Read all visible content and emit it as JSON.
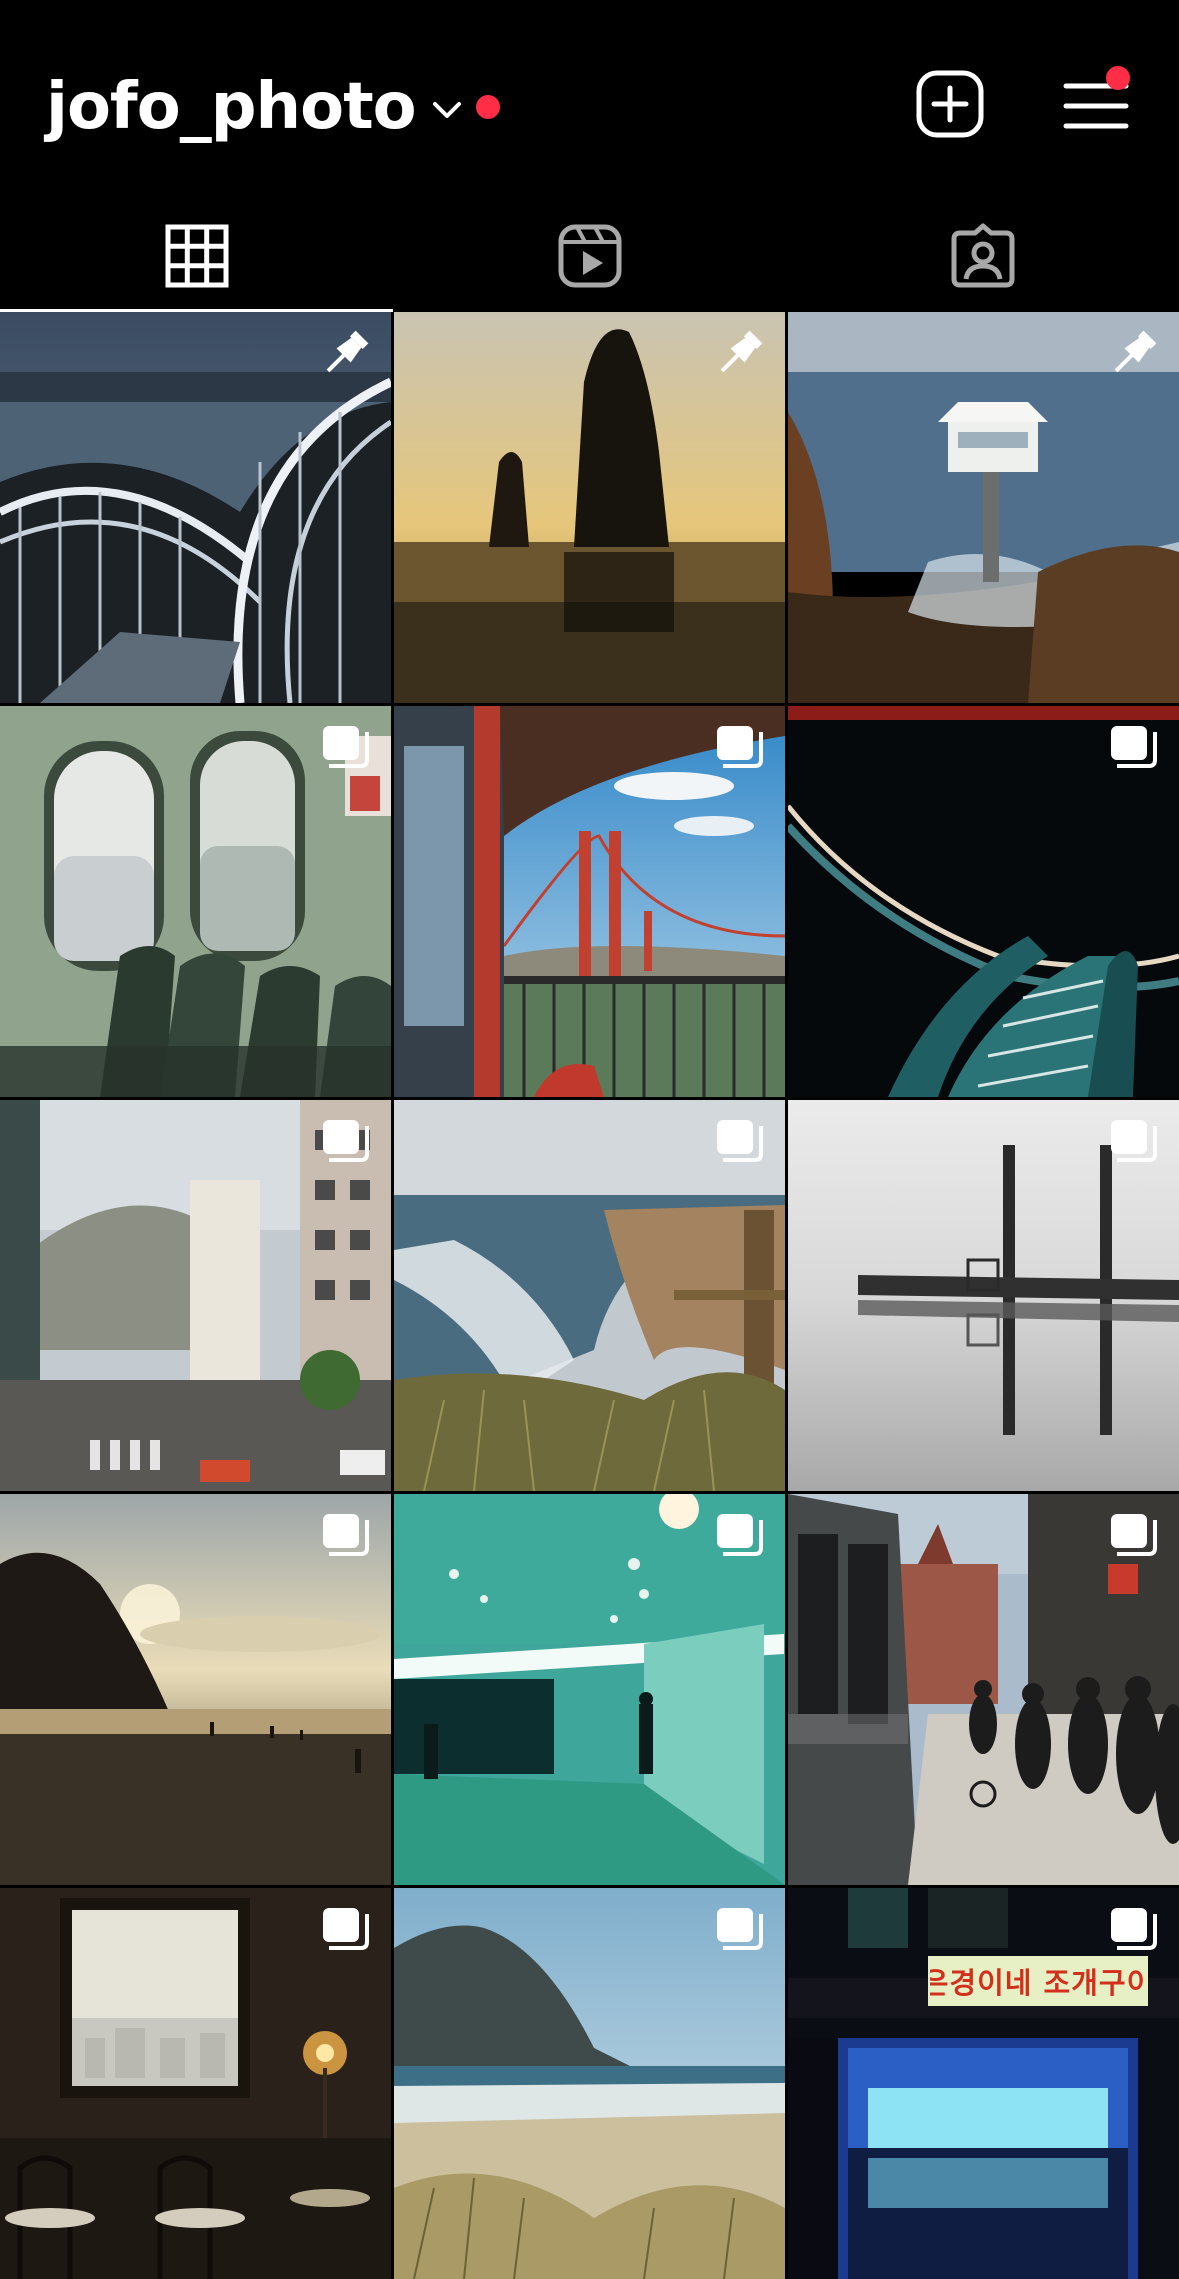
{
  "header": {
    "username": "jofo_photo",
    "icons": {
      "account_switcher": "chevron-down-icon",
      "unread": "notification-dot",
      "create": "plus-square-icon",
      "menu": "hamburger-menu-icon"
    },
    "notification_color": "#ff2d46"
  },
  "tabs": [
    {
      "id": "posts",
      "icon": "grid-icon",
      "active": true
    },
    {
      "id": "reels",
      "icon": "reels-icon",
      "active": false
    },
    {
      "id": "tagged",
      "icon": "tagged-person-icon",
      "active": false
    }
  ],
  "posts": [
    {
      "subject": "spiral staircase over coastal city",
      "overlay": "pinned-icon"
    },
    {
      "subject": "sea stack at sunset",
      "overlay": "pinned-icon"
    },
    {
      "subject": "lifeguard tower on rocky coast",
      "overlay": "pinned-icon"
    },
    {
      "subject": "ferry cabin window seats",
      "overlay": "carousel-icon"
    },
    {
      "subject": "golden gate bridge from balcony",
      "overlay": "carousel-icon"
    },
    {
      "subject": "lit spiral walkway at night",
      "overlay": "carousel-icon"
    },
    {
      "subject": "hillside city street",
      "overlay": "carousel-icon"
    },
    {
      "subject": "beach and waves from cliff",
      "overlay": "carousel-icon"
    },
    {
      "subject": "pier reflection in fog",
      "overlay": "carousel-icon"
    },
    {
      "subject": "haystack rock at sunset",
      "overlay": "carousel-icon"
    },
    {
      "subject": "teal corridor with figure",
      "overlay": "carousel-icon"
    },
    {
      "subject": "street beside tram",
      "overlay": "carousel-icon"
    },
    {
      "subject": "cafe window interior",
      "overlay": "carousel-icon"
    },
    {
      "subject": "morro rock beach",
      "overlay": "carousel-icon"
    },
    {
      "subject": "night seafood stall",
      "overlay": "carousel-icon",
      "sign_text": "은경이네 조개구이"
    }
  ]
}
